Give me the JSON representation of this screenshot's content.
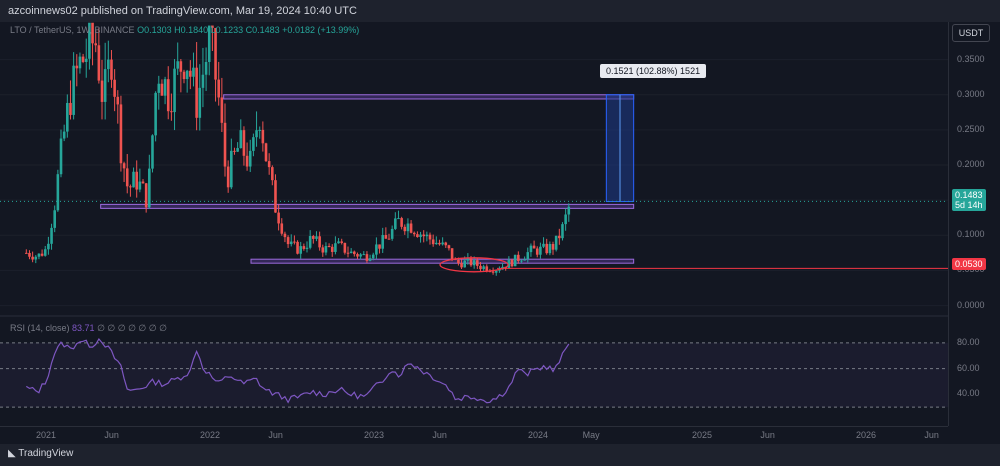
{
  "header": {
    "publisher": "azcoinnews02 published on TradingView.com, Mar 19, 2024 10:40 UTC"
  },
  "symbol": {
    "pair_prefix": "LTO / TetherUS, ",
    "timeframe": "1W",
    "exchange": ", BINANCE ",
    "ohlc": "O0.1303  H0.1840  L0.1233  C0.1483  +0.0182 (+13.99%)"
  },
  "currency_button": "USDT",
  "colors": {
    "up": "#26a69a",
    "down": "#ef5350",
    "zone_fill": "#5b3d9a",
    "zone_border": "#9c6ade",
    "rsi_line": "#7e57c2",
    "support_line": "#f23645",
    "measure_fill": "#1e3a8a"
  },
  "badges": {
    "last_price": "0.1483",
    "countdown": "5d 14h",
    "support_price": "0.0530"
  },
  "measure_label": "0.1521 (102.88%) 1521",
  "rsi": {
    "label_prefix": "RSI (14, close) ",
    "value": "83.71",
    "suffix": " ∅ ∅ ∅ ∅ ∅ ∅ ∅",
    "levels": [
      80,
      60,
      40
    ],
    "ticks": [
      "80.00",
      "60.00",
      "40.00"
    ]
  },
  "chart_data": {
    "type": "candlestick",
    "title": "LTO / TetherUS, 1W, BINANCE",
    "y_ticks": [
      "0.3500",
      "0.3000",
      "0.2500",
      "0.2000",
      "0.1500",
      "0.1000",
      "0.0500",
      "0.0000"
    ],
    "y_tick_values": [
      0.35,
      0.3,
      0.25,
      0.2,
      0.15,
      0.1,
      0.05,
      0.0
    ],
    "ylim": [
      -0.012,
      0.395
    ],
    "x_ticks": [
      "2021",
      "Jun",
      "2022",
      "Jun",
      "2023",
      "Jun",
      "2024",
      "May",
      "2025",
      "Jun",
      "2026",
      "Jun"
    ],
    "x_tick_dates": [
      "2021-01",
      "2021-06",
      "2022-01",
      "2022-06",
      "2023-01",
      "2023-06",
      "2024-01",
      "2024-05",
      "2025-01",
      "2025-06",
      "2026-01",
      "2026-06"
    ],
    "series": [
      {
        "name": "",
        "close_path_start": "2020-11",
        "close_path_end": "2024-03",
        "close_path": [
          [
            2020.88,
            0.075
          ],
          [
            2020.95,
            0.07
          ],
          [
            2021.0,
            0.08
          ],
          [
            2021.05,
            0.14
          ],
          [
            2021.1,
            0.23
          ],
          [
            2021.15,
            0.3
          ],
          [
            2021.2,
            0.34
          ],
          [
            2021.3,
            0.38
          ],
          [
            2021.35,
            0.29
          ],
          [
            2021.4,
            0.36
          ],
          [
            2021.46,
            0.22
          ],
          [
            2021.5,
            0.165
          ],
          [
            2021.55,
            0.18
          ],
          [
            2021.62,
            0.15
          ],
          [
            2021.68,
            0.34
          ],
          [
            2021.75,
            0.3
          ],
          [
            2021.85,
            0.36
          ],
          [
            2021.92,
            0.29
          ],
          [
            2022.0,
            0.38
          ],
          [
            2022.05,
            0.3
          ],
          [
            2022.1,
            0.18
          ],
          [
            2022.18,
            0.23
          ],
          [
            2022.25,
            0.2
          ],
          [
            2022.3,
            0.28
          ],
          [
            2022.35,
            0.2
          ],
          [
            2022.4,
            0.14
          ],
          [
            2022.48,
            0.085
          ],
          [
            2022.55,
            0.08
          ],
          [
            2022.62,
            0.095
          ],
          [
            2022.7,
            0.08
          ],
          [
            2022.78,
            0.085
          ],
          [
            2022.86,
            0.075
          ],
          [
            2022.95,
            0.07
          ],
          [
            2023.02,
            0.085
          ],
          [
            2023.08,
            0.095
          ],
          [
            2023.15,
            0.12
          ],
          [
            2023.22,
            0.115
          ],
          [
            2023.3,
            0.1
          ],
          [
            2023.38,
            0.09
          ],
          [
            2023.45,
            0.08
          ],
          [
            2023.5,
            0.06
          ],
          [
            2023.58,
            0.062
          ],
          [
            2023.66,
            0.055
          ],
          [
            2023.74,
            0.052
          ],
          [
            2023.82,
            0.06
          ],
          [
            2023.9,
            0.07
          ],
          [
            2023.96,
            0.078
          ],
          [
            2024.05,
            0.08
          ],
          [
            2024.1,
            0.085
          ],
          [
            2024.15,
            0.11
          ],
          [
            2024.2,
            0.148
          ]
        ]
      }
    ],
    "last_close": 0.1483,
    "zones": [
      {
        "from": "2021-05",
        "to": "2024-08",
        "low": 0.139,
        "high": 0.144
      },
      {
        "from": "2022-04",
        "to": "2024-08",
        "low": 0.062,
        "high": 0.066
      },
      {
        "from": "2022-02",
        "to": "2024-08",
        "low": 0.294,
        "high": 0.3
      }
    ],
    "horizontal_line": 0.053,
    "measure": {
      "from": "2024-06",
      "to": "2024-08",
      "low": 0.148,
      "high": 0.3
    },
    "rsi_series": [
      [
        2020.88,
        45
      ],
      [
        2020.95,
        42
      ],
      [
        2021.0,
        50
      ],
      [
        2021.05,
        72
      ],
      [
        2021.1,
        80
      ],
      [
        2021.15,
        75
      ],
      [
        2021.2,
        82
      ],
      [
        2021.28,
        78
      ],
      [
        2021.33,
        84
      ],
      [
        2021.4,
        72
      ],
      [
        2021.46,
        60
      ],
      [
        2021.5,
        42
      ],
      [
        2021.58,
        45
      ],
      [
        2021.66,
        50
      ],
      [
        2021.72,
        48
      ],
      [
        2021.8,
        52
      ],
      [
        2021.88,
        58
      ],
      [
        2021.92,
        76
      ],
      [
        2021.95,
        62
      ],
      [
        2022.0,
        55
      ],
      [
        2022.05,
        48
      ],
      [
        2022.12,
        55
      ],
      [
        2022.2,
        48
      ],
      [
        2022.28,
        52
      ],
      [
        2022.33,
        44
      ],
      [
        2022.4,
        40
      ],
      [
        2022.48,
        36
      ],
      [
        2022.55,
        38
      ],
      [
        2022.62,
        42
      ],
      [
        2022.7,
        40
      ],
      [
        2022.78,
        44
      ],
      [
        2022.86,
        40
      ],
      [
        2022.95,
        38
      ],
      [
        2023.0,
        45
      ],
      [
        2023.05,
        50
      ],
      [
        2023.1,
        60
      ],
      [
        2023.15,
        55
      ],
      [
        2023.22,
        65
      ],
      [
        2023.3,
        58
      ],
      [
        2023.38,
        52
      ],
      [
        2023.45,
        46
      ],
      [
        2023.5,
        36
      ],
      [
        2023.55,
        38
      ],
      [
        2023.62,
        38
      ],
      [
        2023.68,
        35
      ],
      [
        2023.75,
        37
      ],
      [
        2023.82,
        45
      ],
      [
        2023.88,
        60
      ],
      [
        2023.92,
        55
      ],
      [
        2024.0,
        60
      ],
      [
        2024.05,
        62
      ],
      [
        2024.1,
        58
      ],
      [
        2024.15,
        70
      ],
      [
        2024.2,
        83.71
      ]
    ]
  }
}
